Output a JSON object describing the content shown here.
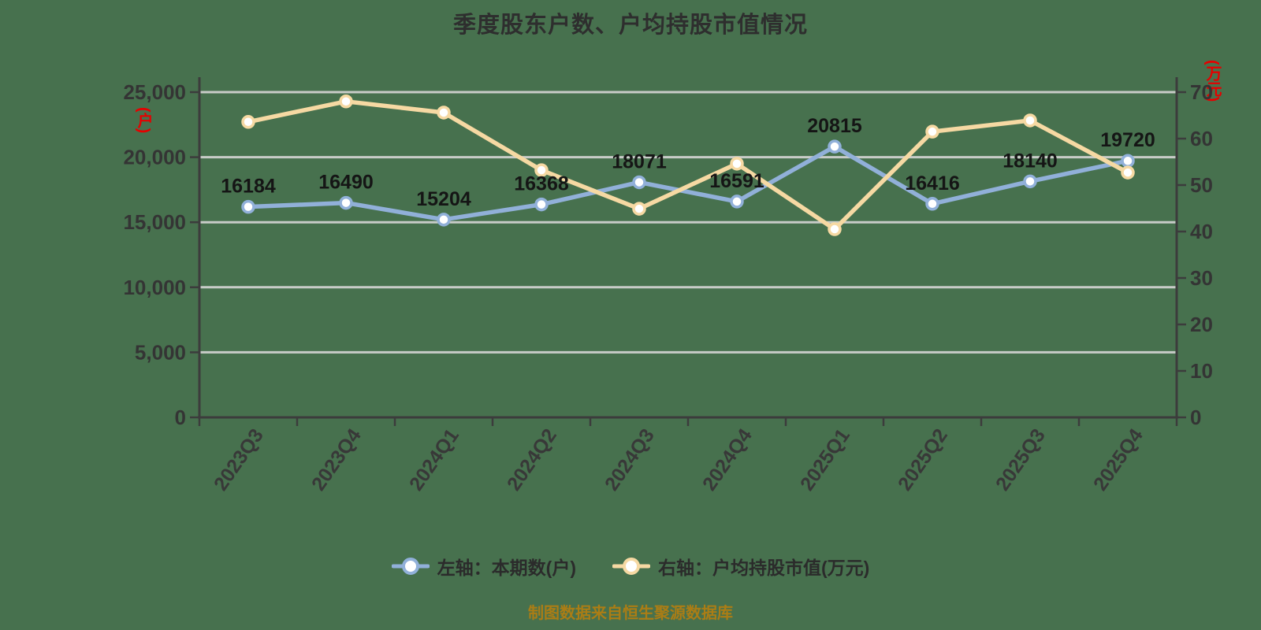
{
  "title": "季度股东户数、户均持股市值情况",
  "caption": "制图数据来自恒生聚源数据库",
  "legend": {
    "items": [
      {
        "label": "左轴：本期数(户)",
        "color": "#91b0d9"
      },
      {
        "label": "右轴：户均持股市值(万元)",
        "color": "#f6d9a3"
      }
    ]
  },
  "colors": {
    "background": "#47714e",
    "gridline": "#c8ccc8",
    "axis": "#3c3c3c",
    "tick_label": "#343434",
    "data_label": "#151515",
    "series_left_blue": "#91b0d9",
    "series_right_yellow": "#f6d9a3",
    "marker_fill": "#ffffff",
    "unit_label_red": "#e60000",
    "caption_gold": "#ab7d15"
  },
  "chart_data": {
    "type": "line",
    "title": "季度股东户数、户均持股市值情况",
    "categories": [
      "2023Q3",
      "2023Q4",
      "2024Q1",
      "2024Q2",
      "2024Q3",
      "2024Q4",
      "2025Q1",
      "2025Q2",
      "2025Q3",
      "2025Q4"
    ],
    "series": [
      {
        "name": "左轴：本期数(户)",
        "axis": "left",
        "color": "#91b0d9",
        "labeled": true,
        "values": [
          16184,
          16490,
          15204,
          16368,
          18071,
          16591,
          20815,
          16416,
          18140,
          19720
        ]
      },
      {
        "name": "右轴：户均持股市值(万元)",
        "axis": "right",
        "color": "#f6d9a3",
        "labeled": false,
        "estimated": true,
        "values": [
          63.6,
          68.0,
          65.6,
          53.2,
          44.9,
          54.6,
          40.5,
          61.5,
          63.9,
          52.7
        ]
      }
    ],
    "left_axis": {
      "unit": "(户)",
      "ticks": [
        "25,000",
        "20,000",
        "15,000",
        "10,000",
        "5,000",
        "0"
      ]
    },
    "right_axis": {
      "unit": "(万元)",
      "ticks": [
        "70",
        "60",
        "50",
        "40",
        "30",
        "20",
        "10",
        "0"
      ]
    },
    "left_ylim": [
      0,
      25000
    ],
    "right_ylim": [
      0,
      70
    ],
    "grid": true,
    "legend_position": "bottom",
    "x_label_rotation_deg": -55
  }
}
